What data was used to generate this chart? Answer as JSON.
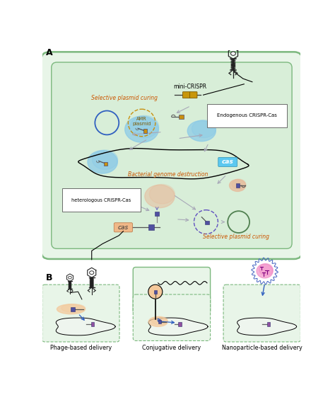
{
  "fig_width": 4.74,
  "fig_height": 5.92,
  "dpi": 100,
  "bg_color": "#ffffff",
  "cell_outer_fill": "#e8f5e8",
  "cell_outer_edge": "#7cb87e",
  "cell_inner_fill": "#d8eed8",
  "cell_inner_edge": "#7cb87e",
  "blue_blob": "#89c9e8",
  "orange_blob": "#e8b898",
  "light_salmon": "#f4c89a",
  "gold_color": "#c8960a",
  "text_orange": "#cc5500",
  "cas_blue_bg": "#5bc8f0",
  "cas_salmon_bg": "#f0b888",
  "arrow_gray": "#a8a8b8",
  "arrow_blue": "#3060c0",
  "dashed_purple": "#6050c0",
  "green_circle": "#508050",
  "blue_circle": "#3060c0",
  "phage_color": "#222222",
  "label_A": "A",
  "label_B": "B",
  "label_mini_crispr": "mini-CRISPR",
  "label_endogenous": "Endogenous CRISPR-Cas",
  "label_heterologous": "heterologous CRISPR-Cas",
  "label_bacterial": "Bacterial genome destruction",
  "label_selective_top": "Selective plasmid curing",
  "label_selective_bottom": "Selective plasmid curing",
  "label_amr": "AMR\nplasmid",
  "label_cas": "cas",
  "label_phage_delivery": "Phage-based delivery",
  "label_conjugative": "Conjugative delivery",
  "label_nanoparticle": "Nanoparticle-based delivery"
}
